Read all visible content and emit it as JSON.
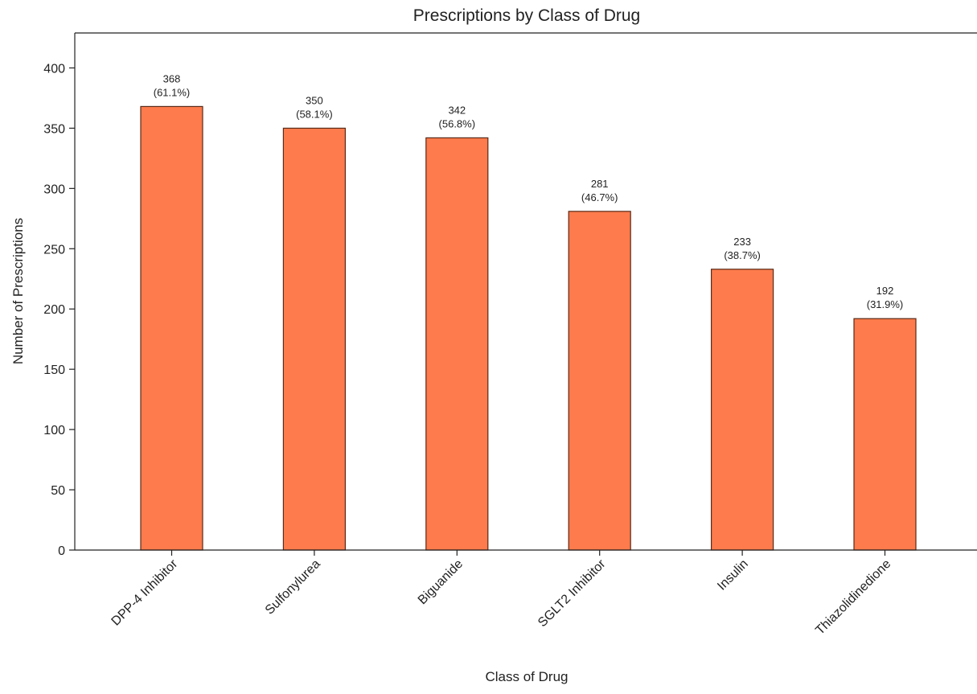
{
  "chart_data": {
    "type": "bar",
    "title": "Prescriptions by Class of Drug",
    "xlabel": "Class of Drug",
    "ylabel": "Number of Prescriptions",
    "categories": [
      "DPP-4 Inhibitor",
      "Sulfonylurea",
      "Biguanide",
      "SGLT2 Inhibitor",
      "Insulin",
      "Thiazolidinedione"
    ],
    "values": [
      368,
      350,
      342,
      281,
      233,
      192
    ],
    "percent_labels": [
      "(61.1%)",
      "(58.1%)",
      "(56.8%)",
      "(46.7%)",
      "(38.7%)",
      "(31.9%)"
    ],
    "ylim": [
      0,
      429
    ],
    "yticks": [
      0,
      50,
      100,
      150,
      200,
      250,
      300,
      350,
      400
    ],
    "bar_color": "#fd7b4c",
    "bar_edge_color": "#5a2a18",
    "grid": false,
    "legend": "none"
  }
}
